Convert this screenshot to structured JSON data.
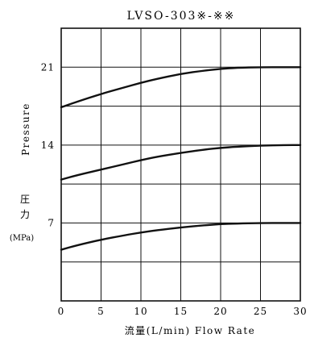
{
  "chart_data": {
    "type": "line",
    "title": "LVSO-303※-※※",
    "xlabel": "流量(L/min) Flow Rate",
    "ylabel": "Pressure",
    "ylabel_jp": [
      "圧",
      "力"
    ],
    "yunit": "(MPa)",
    "xlim": [
      0,
      30
    ],
    "ylim": [
      0,
      24.5
    ],
    "x_ticks": [
      0,
      5,
      10,
      15,
      20,
      25,
      30
    ],
    "y_ticks": [
      7,
      14,
      21
    ],
    "grid": true,
    "series": [
      {
        "x": [
          0,
          2,
          5,
          8,
          10,
          12,
          15,
          18,
          20,
          22,
          25,
          28,
          30
        ],
        "values": [
          17.4,
          17.9,
          18.6,
          19.2,
          19.6,
          19.95,
          20.4,
          20.7,
          20.85,
          20.95,
          21.0,
          21.0,
          21.0
        ]
      },
      {
        "x": [
          0,
          2,
          5,
          8,
          10,
          12,
          15,
          18,
          20,
          22,
          25,
          28,
          30
        ],
        "values": [
          10.9,
          11.3,
          11.8,
          12.3,
          12.65,
          12.95,
          13.3,
          13.6,
          13.75,
          13.85,
          13.95,
          14.0,
          14.0
        ]
      },
      {
        "x": [
          0,
          2,
          5,
          8,
          10,
          12,
          15,
          18,
          20,
          22,
          25,
          28,
          30
        ],
        "values": [
          4.6,
          5.0,
          5.5,
          5.9,
          6.15,
          6.35,
          6.6,
          6.8,
          6.9,
          6.95,
          7.0,
          7.0,
          7.0
        ]
      }
    ]
  }
}
